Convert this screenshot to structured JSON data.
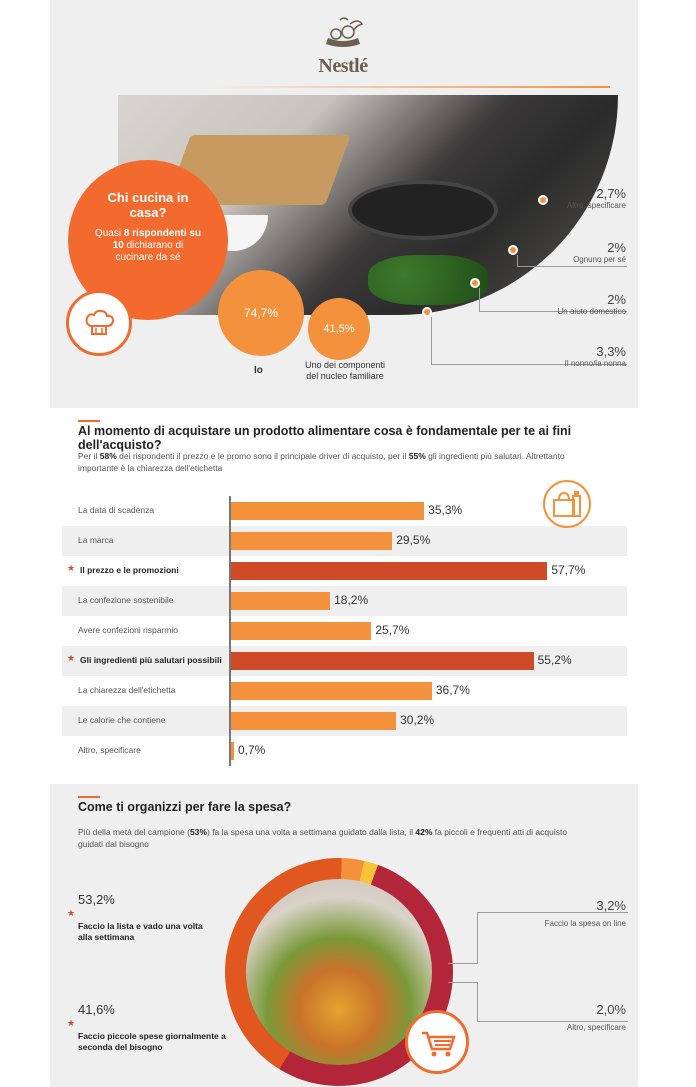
{
  "brand": {
    "name": "Nestlé",
    "color": "#6d5e4f"
  },
  "colors": {
    "accent": "#f26a2e",
    "bar": "#f4913c",
    "bar_highlight": "#cf4a27",
    "ring_main": "#b3263a"
  },
  "who_cooks": {
    "question": "Chi cucina in casa?",
    "desc_pre": "Quasi ",
    "desc_bold": "8 rispondenti su 10",
    "desc_post": " dichiarano di cucinare da sé",
    "io": {
      "pct": "74,7%",
      "label": "Io"
    },
    "family": {
      "pct": "41,5%",
      "label": "Uno dei componenti del nucleo familiare"
    },
    "others": [
      {
        "pct": "2,7%",
        "label": "Altro, specificare"
      },
      {
        "pct": "2%",
        "label": "Ognuno per sé"
      },
      {
        "pct": "2%",
        "label": "Un aiuto domestico"
      },
      {
        "pct": "3,3%",
        "label": "Il nonno/la nonna"
      }
    ],
    "icons": {
      "chef": "chef-hat-icon"
    }
  },
  "purchase": {
    "title": "Al momento di acquistare un prodotto alimentare cosa è fondamentale per te ai fini dell'acquisto?",
    "desc_1": "Per il ",
    "desc_b1": "58%",
    "desc_2": " dei rispondenti il prezzo e le promo sono il principale driver di acquisto, per il ",
    "desc_b2": "55%",
    "desc_3": " gli ingredienti più salutari. Altrettanto importante è la chiarezza dell'etichetta",
    "icon": "shopping-bag-icon"
  },
  "chart_data": {
    "type": "bar",
    "orientation": "horizontal",
    "categories": [
      "La data di scadenza",
      "La marca",
      "Il prezzo e le promozioni",
      "La confezione sostenibile",
      "Avere confezioni risparmio",
      "Gli ingredienti più salutari possibili",
      "La chiarezza dell'etichetta",
      "Le calorie che contiene",
      "Altro, specificare"
    ],
    "values": [
      35.3,
      29.5,
      57.7,
      18.2,
      25.7,
      55.2,
      36.7,
      30.2,
      0.7
    ],
    "value_labels": [
      "35,3%",
      "29,5%",
      "57,7%",
      "18,2%",
      "25,7%",
      "55,2%",
      "36,7%",
      "30,2%",
      "0,7%"
    ],
    "highlighted": [
      false,
      false,
      true,
      false,
      false,
      true,
      false,
      false,
      false
    ],
    "xlim": [
      0,
      60
    ],
    "grid": false
  },
  "shopping": {
    "title": "Come ti organizzi per fare la spesa?",
    "desc_1": "Più della metà del campione (",
    "desc_b1": "53%",
    "desc_2": ") fa la spesa una volta a settimana guidato dalla lista, il ",
    "desc_b2": "42%",
    "desc_3": " fa piccoli e frequenti atti di acquisto guidati dal bisogno",
    "left": [
      {
        "pct": "53,2%",
        "label": "Faccio la lista e vado una volta alla settimana"
      },
      {
        "pct": "41,6%",
        "label": "Faccio piccole spese giornalmente a seconda del bisogno"
      }
    ],
    "right": [
      {
        "pct": "3,2%",
        "label": "Faccio la spesa on line"
      },
      {
        "pct": "2,0%",
        "label": "Altro, specificare"
      }
    ],
    "ring_values": [
      53.2,
      41.6,
      3.2,
      2.0
    ],
    "ring_colors": [
      "#b3263a",
      "#e0571f",
      "#f4913c",
      "#f6c23a"
    ],
    "icon": "shopping-cart-icon"
  }
}
